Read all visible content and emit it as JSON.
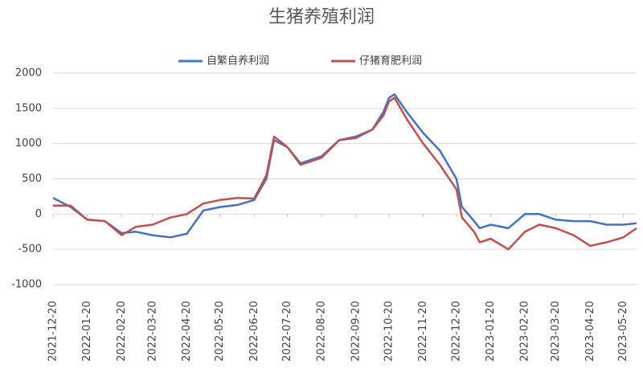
{
  "chart_data": {
    "type": "line",
    "title": "生猪养殖利润",
    "x": [
      "2021-12-20",
      "2022-01-05",
      "2022-01-20",
      "2022-02-05",
      "2022-02-20",
      "2022-03-05",
      "2022-03-20",
      "2022-04-05",
      "2022-04-20",
      "2022-05-05",
      "2022-05-20",
      "2022-06-05",
      "2022-06-20",
      "2022-07-01",
      "2022-07-08",
      "2022-07-20",
      "2022-08-01",
      "2022-08-20",
      "2022-09-05",
      "2022-09-20",
      "2022-10-05",
      "2022-10-15",
      "2022-10-20",
      "2022-10-25",
      "2022-11-05",
      "2022-11-20",
      "2022-12-05",
      "2022-12-20",
      "2022-12-25",
      "2023-01-05",
      "2023-01-10",
      "2023-01-20",
      "2023-02-05",
      "2023-02-20",
      "2023-03-05",
      "2023-03-20",
      "2023-04-05",
      "2023-04-20",
      "2023-05-05",
      "2023-05-20",
      "2023-06-01"
    ],
    "series": [
      {
        "name": "自繁自养利润",
        "color": "#4472c4",
        "values": [
          230,
          100,
          -80,
          -100,
          -270,
          -250,
          -300,
          -330,
          -280,
          50,
          100,
          130,
          200,
          500,
          1050,
          950,
          720,
          820,
          1050,
          1100,
          1200,
          1450,
          1650,
          1700,
          1450,
          1150,
          900,
          500,
          100,
          -100,
          -200,
          -150,
          -200,
          0,
          0,
          -80,
          -100,
          -100,
          -150,
          -150,
          -130
        ]
      },
      {
        "name": "仔猪育肥利润",
        "color": "#c0504d",
        "values": [
          120,
          120,
          -80,
          -100,
          -300,
          -180,
          -150,
          -50,
          0,
          150,
          200,
          230,
          220,
          550,
          1100,
          950,
          700,
          800,
          1050,
          1080,
          1200,
          1400,
          1600,
          1650,
          1350,
          1000,
          700,
          350,
          -50,
          -250,
          -400,
          -350,
          -500,
          -250,
          -150,
          -200,
          -300,
          -450,
          -400,
          -330,
          -200
        ]
      }
    ],
    "xlim": [
      "2021-12-20",
      "2023-06-01"
    ],
    "xticks": [
      "2021-12-20",
      "2022-01-20",
      "2022-02-20",
      "2022-03-20",
      "2022-04-20",
      "2022-05-20",
      "2022-06-20",
      "2022-07-20",
      "2022-08-20",
      "2022-09-20",
      "2022-10-20",
      "2022-11-20",
      "2022-12-20",
      "2023-01-20",
      "2023-02-20",
      "2023-03-20",
      "2023-04-20",
      "2023-05-20"
    ],
    "ylim": [
      -1000,
      2000
    ],
    "yticks": [
      -1000,
      -500,
      0,
      500,
      1000,
      1500,
      2000
    ],
    "grid": true,
    "legend": "top"
  }
}
